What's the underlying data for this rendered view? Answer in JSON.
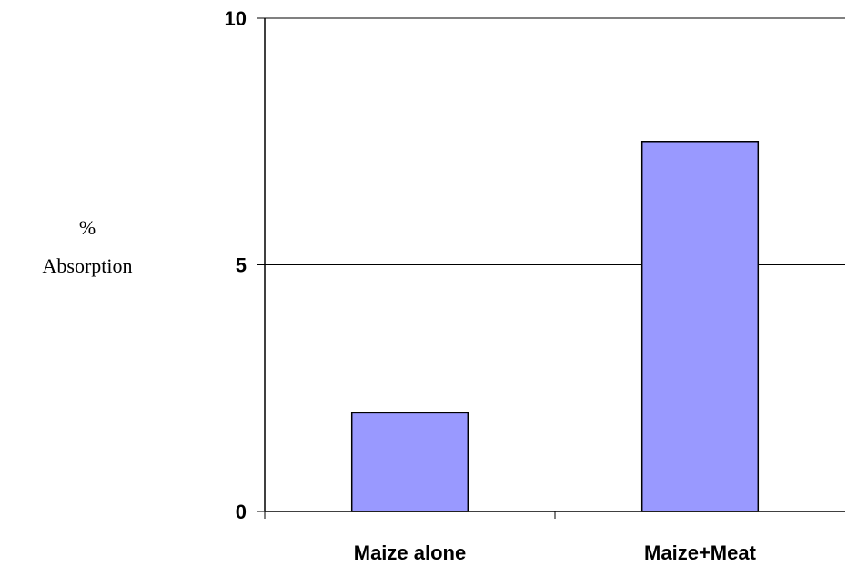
{
  "chart_data": {
    "type": "bar",
    "categories": [
      "Maize alone",
      "Maize+Meat"
    ],
    "values": [
      2,
      7.5
    ],
    "ylabel": [
      "%",
      "Absorption"
    ],
    "xlabel": "",
    "ylim": [
      0,
      10
    ],
    "yticks": [
      {
        "value": 0,
        "label": "0"
      },
      {
        "value": 5,
        "label": "5"
      },
      {
        "value": 10,
        "label": "10"
      }
    ],
    "grid": true,
    "bar_color": "#9999ff",
    "bar_edge_color": "#000000"
  }
}
